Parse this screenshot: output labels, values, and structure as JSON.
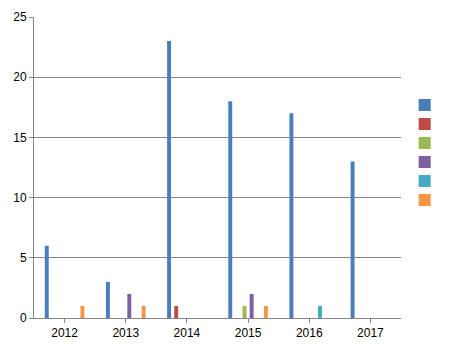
{
  "chart_data": {
    "type": "bar",
    "categories": [
      "2012",
      "2013",
      "2014",
      "2015",
      "2016",
      "2017"
    ],
    "series": [
      {
        "color": "#4a7ebb",
        "values": [
          6,
          3,
          23,
          18,
          17,
          13
        ]
      },
      {
        "color": "#be4b48",
        "values": [
          0,
          0,
          1,
          0,
          0,
          0
        ]
      },
      {
        "color": "#98b954",
        "values": [
          0,
          0,
          0,
          1,
          0,
          0
        ]
      },
      {
        "color": "#7d60a0",
        "values": [
          0,
          2,
          0,
          2,
          0,
          0
        ]
      },
      {
        "color": "#46aac5",
        "values": [
          0,
          0,
          0,
          0,
          1,
          0
        ]
      },
      {
        "color": "#f69544",
        "values": [
          1,
          1,
          0,
          1,
          0,
          0
        ]
      }
    ],
    "ylim": [
      0,
      25
    ],
    "yticks": [
      0,
      5,
      10,
      15,
      20,
      25
    ],
    "grid": true,
    "legend": "right"
  }
}
